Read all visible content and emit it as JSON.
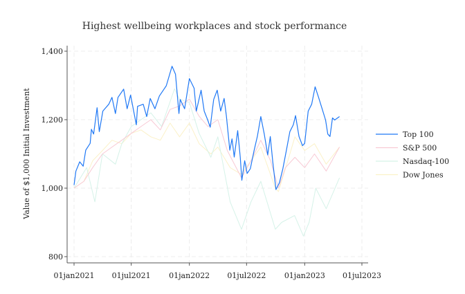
{
  "chart_data": {
    "type": "line",
    "title": "Highest wellbeing workplaces and stock performance",
    "xlabel": "",
    "ylabel": "Value of $1,000 Initial Investment",
    "ylim": [
      790,
      1410
    ],
    "xlim": [
      "2020-12-20",
      "2023-07-10"
    ],
    "yticks": [
      800,
      1000,
      1200,
      1400
    ],
    "ytick_labels": [
      "800",
      "1,000",
      "1,200",
      "1,400"
    ],
    "xticks": [
      "2021-01-01",
      "2021-07-01",
      "2022-01-01",
      "2022-07-01",
      "2023-01-01",
      "2023-07-01"
    ],
    "xtick_labels": [
      "01jan2021",
      "01jul2021",
      "01jan2022",
      "01jul2022",
      "01jan2023",
      "01jul2023"
    ],
    "grid": true,
    "legend_position": "right",
    "series": [
      {
        "name": "Top 100",
        "color": "#1f78f5",
        "x": [
          "2021-01-01",
          "2021-01-07",
          "2021-01-19",
          "2021-01-30",
          "2021-02-07",
          "2021-02-21",
          "2021-02-25",
          "2021-03-04",
          "2021-03-15",
          "2021-03-22",
          "2021-04-02",
          "2021-04-21",
          "2021-05-01",
          "2021-05-12",
          "2021-05-20",
          "2021-06-07",
          "2021-06-18",
          "2021-06-29",
          "2021-07-17",
          "2021-07-21",
          "2021-08-08",
          "2021-08-19",
          "2021-08-30",
          "2021-09-14",
          "2021-09-28",
          "2021-10-20",
          "2021-11-07",
          "2021-11-18",
          "2021-11-29",
          "2021-12-03",
          "2021-12-17",
          "2022-01-01",
          "2022-01-16",
          "2022-01-23",
          "2022-02-07",
          "2022-02-17",
          "2022-02-28",
          "2022-03-08",
          "2022-03-19",
          "2022-03-30",
          "2022-04-10",
          "2022-04-21",
          "2022-04-28",
          "2022-05-09",
          "2022-05-16",
          "2022-05-23",
          "2022-06-03",
          "2022-06-11",
          "2022-06-16",
          "2022-06-25",
          "2022-07-03",
          "2022-07-13",
          "2022-07-25",
          "2022-08-04",
          "2022-08-15",
          "2022-08-26",
          "2022-09-06",
          "2022-09-14",
          "2022-09-22",
          "2022-10-02",
          "2022-10-13",
          "2022-10-24",
          "2022-11-04",
          "2022-11-15",
          "2022-11-26",
          "2022-12-03",
          "2022-12-14",
          "2022-12-25",
          "2023-01-01",
          "2023-01-12",
          "2023-01-23",
          "2023-02-03",
          "2023-02-14",
          "2023-02-25",
          "2023-03-08",
          "2023-03-15",
          "2023-03-22",
          "2023-03-30",
          "2023-04-06",
          "2023-04-21"
        ],
        "values": [
          1009,
          1050,
          1077,
          1064,
          1111,
          1131,
          1172,
          1158,
          1235,
          1165,
          1225,
          1245,
          1265,
          1218,
          1265,
          1289,
          1232,
          1272,
          1185,
          1239,
          1245,
          1209,
          1262,
          1232,
          1269,
          1299,
          1356,
          1333,
          1218,
          1259,
          1232,
          1320,
          1292,
          1225,
          1286,
          1225,
          1199,
          1178,
          1259,
          1286,
          1225,
          1262,
          1212,
          1111,
          1144,
          1091,
          1168,
          1091,
          1023,
          1080,
          1043,
          1057,
          1111,
          1151,
          1209,
          1158,
          1097,
          1151,
          1077,
          996,
          1016,
          1057,
          1111,
          1165,
          1185,
          1212,
          1151,
          1124,
          1131,
          1225,
          1245,
          1296,
          1265,
          1232,
          1199,
          1158,
          1151,
          1205,
          1199,
          1209
        ]
      },
      {
        "name": "S&P 500",
        "color": "#f8c9d4",
        "x": [
          "2021-01-01",
          "2021-02-01",
          "2021-03-01",
          "2021-04-01",
          "2021-05-01",
          "2021-06-01",
          "2021-07-01",
          "2021-08-01",
          "2021-09-01",
          "2021-10-01",
          "2021-11-01",
          "2021-12-01",
          "2022-01-01",
          "2022-02-01",
          "2022-03-01",
          "2022-04-01",
          "2022-05-01",
          "2022-06-15",
          "2022-07-15",
          "2022-08-15",
          "2022-09-15",
          "2022-10-10",
          "2022-11-01",
          "2022-12-01",
          "2023-01-01",
          "2023-02-01",
          "2023-03-10",
          "2023-04-21"
        ],
        "values": [
          1000,
          1020,
          1060,
          1100,
          1120,
          1140,
          1160,
          1180,
          1200,
          1170,
          1230,
          1240,
          1260,
          1210,
          1180,
          1200,
          1110,
          1030,
          1080,
          1140,
          1080,
          1000,
          1060,
          1090,
          1060,
          1100,
          1050,
          1120
        ]
      },
      {
        "name": "Nasdaq-100",
        "color": "#d5f2e8",
        "x": [
          "2021-01-01",
          "2021-02-10",
          "2021-03-08",
          "2021-04-01",
          "2021-05-12",
          "2021-06-01",
          "2021-07-01",
          "2021-08-01",
          "2021-09-01",
          "2021-10-05",
          "2021-11-15",
          "2021-12-01",
          "2022-01-01",
          "2022-02-01",
          "2022-03-10",
          "2022-04-01",
          "2022-05-10",
          "2022-06-15",
          "2022-07-15",
          "2022-08-15",
          "2022-09-30",
          "2022-10-20",
          "2022-11-30",
          "2022-12-28",
          "2023-01-15",
          "2023-02-05",
          "2023-03-10",
          "2023-04-21"
        ],
        "values": [
          1000,
          1060,
          960,
          1100,
          1070,
          1130,
          1180,
          1200,
          1220,
          1180,
          1290,
          1260,
          1250,
          1160,
          1090,
          1150,
          960,
          880,
          960,
          1020,
          880,
          900,
          920,
          860,
          900,
          1000,
          940,
          1030
        ]
      },
      {
        "name": "Dow Jones",
        "color": "#fbf1c8",
        "x": [
          "2021-01-01",
          "2021-02-01",
          "2021-03-01",
          "2021-04-01",
          "2021-05-01",
          "2021-06-01",
          "2021-07-01",
          "2021-08-01",
          "2021-09-01",
          "2021-10-01",
          "2021-11-01",
          "2021-12-01",
          "2022-01-01",
          "2022-02-01",
          "2022-03-10",
          "2022-04-01",
          "2022-05-10",
          "2022-06-15",
          "2022-07-15",
          "2022-08-15",
          "2022-09-30",
          "2022-10-10",
          "2022-11-15",
          "2022-12-01",
          "2023-01-01",
          "2023-02-01",
          "2023-03-10",
          "2023-04-21"
        ],
        "values": [
          1000,
          1020,
          1080,
          1110,
          1140,
          1130,
          1160,
          1170,
          1150,
          1140,
          1190,
          1150,
          1190,
          1130,
          1100,
          1120,
          1060,
          1040,
          1080,
          1120,
          1000,
          990,
          1100,
          1150,
          1110,
          1130,
          1070,
          1120
        ]
      }
    ]
  }
}
